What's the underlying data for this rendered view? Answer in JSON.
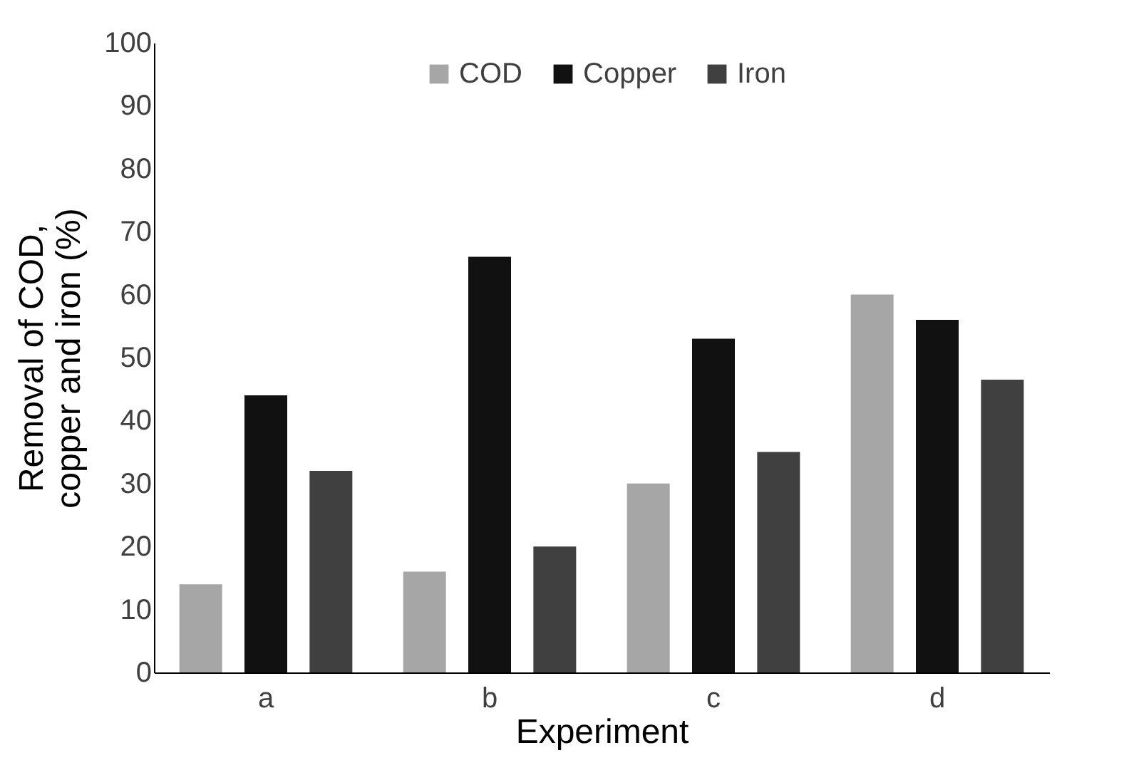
{
  "chart_data": {
    "type": "bar",
    "xlabel": "Experiment",
    "ylabel": "Removal of COD,\ncopper and iron (%)",
    "categories": [
      "a",
      "b",
      "c",
      "d"
    ],
    "series": [
      {
        "name": "COD",
        "color": "#a6a6a6",
        "values": [
          14,
          16,
          30,
          60
        ]
      },
      {
        "name": "Copper",
        "color": "#111111",
        "values": [
          44,
          66,
          53,
          56
        ]
      },
      {
        "name": "Iron",
        "color": "#404040",
        "values": [
          32,
          20,
          35,
          46.5
        ]
      }
    ],
    "ylim": [
      0,
      100
    ],
    "yticks": [
      0,
      10,
      20,
      30,
      40,
      50,
      60,
      70,
      80,
      90,
      100
    ],
    "grid": false,
    "legend": "top"
  }
}
